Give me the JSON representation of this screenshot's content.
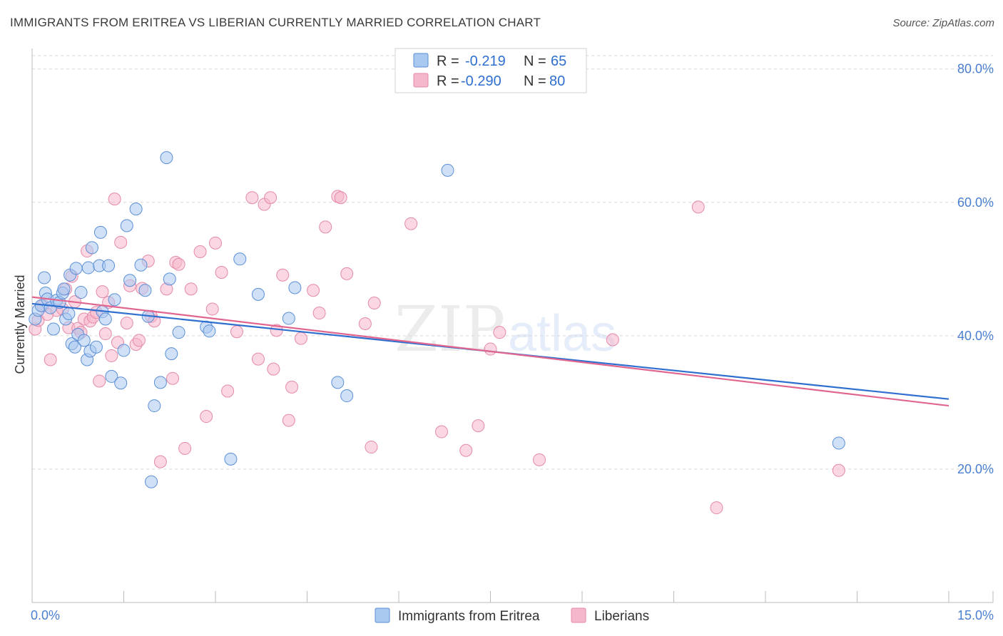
{
  "title": "IMMIGRANTS FROM ERITREA VS LIBERIAN CURRENTLY MARRIED CORRELATION CHART",
  "source": "Source: ZipAtlas.com",
  "watermark": {
    "zip": "ZIP",
    "atlas": "atlas"
  },
  "colors": {
    "blue_fill": "#a9c9f0",
    "blue_stroke": "#5b8fd6",
    "blue_line": "#2f6fcf",
    "pink_fill": "#f5b7cb",
    "pink_stroke": "#e48aa8",
    "pink_line": "#e0668f",
    "tick_text": "#4a7fcf",
    "grid": "#d8d8d8"
  },
  "legend": {
    "r_label": "R =",
    "n_label": "N =",
    "rows": [
      {
        "r": "-0.219",
        "n": "65"
      },
      {
        "r": "-0.290",
        "n": "80"
      }
    ]
  },
  "chart_data": {
    "type": "scatter",
    "title": "IMMIGRANTS FROM ERITREA VS LIBERIAN CURRENTLY MARRIED CORRELATION CHART",
    "xlabel": "",
    "ylabel": "Currently Married",
    "xlim": [
      0,
      15
    ],
    "ylim": [
      0,
      82
    ],
    "x_tick_labels": [
      "0.0%",
      "15.0%"
    ],
    "y_ticks": [
      20,
      40,
      60,
      80
    ],
    "y_tick_labels": [
      "20.0%",
      "40.0%",
      "60.0%",
      "80.0%"
    ],
    "grid": true,
    "legend_position": "top-center",
    "series": [
      {
        "name": "Immigrants from Eritrea",
        "r": -0.219,
        "n": 65,
        "trend": {
          "x": [
            0,
            15
          ],
          "y": [
            44.8,
            30.5
          ]
        },
        "points": [
          [
            0.05,
            42.5
          ],
          [
            0.1,
            43.8
          ],
          [
            0.15,
            44.5
          ],
          [
            0.2,
            48.7
          ],
          [
            0.22,
            46.4
          ],
          [
            0.25,
            45.5
          ],
          [
            0.3,
            44.2
          ],
          [
            0.35,
            41.0
          ],
          [
            0.4,
            45.3
          ],
          [
            0.45,
            45.0
          ],
          [
            0.5,
            46.4
          ],
          [
            0.52,
            47.0
          ],
          [
            0.55,
            42.5
          ],
          [
            0.6,
            43.3
          ],
          [
            0.62,
            49.1
          ],
          [
            0.65,
            38.8
          ],
          [
            0.7,
            38.3
          ],
          [
            0.72,
            50.1
          ],
          [
            0.75,
            40.2
          ],
          [
            0.8,
            46.5
          ],
          [
            0.85,
            39.3
          ],
          [
            0.9,
            36.4
          ],
          [
            0.92,
            50.2
          ],
          [
            0.95,
            37.7
          ],
          [
            0.98,
            53.2
          ],
          [
            1.05,
            38.3
          ],
          [
            1.1,
            50.5
          ],
          [
            1.12,
            55.5
          ],
          [
            1.15,
            43.6
          ],
          [
            1.2,
            42.5
          ],
          [
            1.25,
            50.5
          ],
          [
            1.3,
            33.9
          ],
          [
            1.35,
            45.4
          ],
          [
            1.45,
            32.9
          ],
          [
            1.5,
            37.8
          ],
          [
            1.55,
            56.5
          ],
          [
            1.6,
            48.3
          ],
          [
            1.7,
            59.0
          ],
          [
            1.78,
            50.6
          ],
          [
            1.85,
            46.8
          ],
          [
            1.9,
            42.9
          ],
          [
            1.95,
            18.1
          ],
          [
            2.0,
            29.5
          ],
          [
            2.1,
            33.0
          ],
          [
            2.2,
            66.7
          ],
          [
            2.25,
            48.5
          ],
          [
            2.28,
            37.3
          ],
          [
            2.4,
            40.5
          ],
          [
            2.85,
            41.3
          ],
          [
            2.9,
            40.7
          ],
          [
            3.25,
            21.5
          ],
          [
            3.4,
            51.5
          ],
          [
            3.7,
            46.2
          ],
          [
            4.2,
            42.6
          ],
          [
            4.3,
            47.2
          ],
          [
            5.0,
            33.0
          ],
          [
            5.15,
            31.0
          ],
          [
            6.8,
            64.8
          ],
          [
            13.2,
            23.9
          ]
        ]
      },
      {
        "name": "Liberians",
        "r": -0.29,
        "n": 80,
        "trend": {
          "x": [
            0,
            15
          ],
          "y": [
            45.8,
            29.5
          ]
        },
        "points": [
          [
            0.05,
            41.0
          ],
          [
            0.1,
            42.3
          ],
          [
            0.18,
            44.5
          ],
          [
            0.25,
            43.2
          ],
          [
            0.3,
            36.4
          ],
          [
            0.4,
            43.8
          ],
          [
            0.5,
            44.0
          ],
          [
            0.55,
            47.0
          ],
          [
            0.6,
            41.2
          ],
          [
            0.65,
            48.9
          ],
          [
            0.7,
            45.1
          ],
          [
            0.75,
            41.1
          ],
          [
            0.8,
            40.5
          ],
          [
            0.85,
            42.5
          ],
          [
            0.9,
            52.7
          ],
          [
            0.95,
            42.2
          ],
          [
            1.0,
            42.8
          ],
          [
            1.05,
            43.5
          ],
          [
            1.1,
            33.2
          ],
          [
            1.15,
            46.6
          ],
          [
            1.2,
            40.3
          ],
          [
            1.25,
            45.0
          ],
          [
            1.3,
            37.0
          ],
          [
            1.35,
            60.5
          ],
          [
            1.4,
            39.0
          ],
          [
            1.45,
            54.0
          ],
          [
            1.55,
            41.9
          ],
          [
            1.6,
            47.5
          ],
          [
            1.7,
            38.7
          ],
          [
            1.75,
            39.3
          ],
          [
            1.8,
            47.1
          ],
          [
            1.9,
            51.2
          ],
          [
            1.95,
            42.9
          ],
          [
            2.0,
            42.2
          ],
          [
            2.1,
            21.1
          ],
          [
            2.2,
            47.0
          ],
          [
            2.3,
            33.6
          ],
          [
            2.35,
            51.0
          ],
          [
            2.4,
            50.7
          ],
          [
            2.5,
            23.1
          ],
          [
            2.6,
            47.0
          ],
          [
            2.75,
            52.6
          ],
          [
            2.85,
            27.9
          ],
          [
            2.95,
            44.0
          ],
          [
            3.0,
            53.9
          ],
          [
            3.1,
            49.5
          ],
          [
            3.2,
            31.7
          ],
          [
            3.35,
            40.6
          ],
          [
            3.6,
            60.7
          ],
          [
            3.7,
            36.5
          ],
          [
            3.8,
            59.7
          ],
          [
            3.9,
            60.7
          ],
          [
            3.95,
            35.0
          ],
          [
            4.0,
            40.8
          ],
          [
            4.1,
            49.1
          ],
          [
            4.2,
            27.3
          ],
          [
            4.25,
            32.3
          ],
          [
            4.4,
            39.6
          ],
          [
            4.6,
            46.8
          ],
          [
            4.7,
            43.4
          ],
          [
            4.8,
            56.3
          ],
          [
            5.0,
            60.9
          ],
          [
            5.05,
            60.7
          ],
          [
            5.15,
            49.3
          ],
          [
            5.45,
            41.8
          ],
          [
            5.55,
            23.3
          ],
          [
            5.6,
            44.9
          ],
          [
            6.2,
            56.8
          ],
          [
            6.7,
            25.6
          ],
          [
            7.1,
            22.8
          ],
          [
            7.3,
            26.5
          ],
          [
            7.5,
            38.0
          ],
          [
            7.65,
            40.5
          ],
          [
            8.3,
            21.4
          ],
          [
            9.5,
            39.4
          ],
          [
            10.9,
            59.3
          ],
          [
            11.2,
            14.2
          ],
          [
            13.2,
            19.8
          ]
        ]
      }
    ]
  }
}
